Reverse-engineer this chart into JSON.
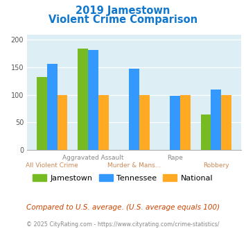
{
  "title_line1": "2019 Jamestown",
  "title_line2": "Violent Crime Comparison",
  "categories": [
    "All Violent Crime",
    "Aggravated Assault",
    "Murder & Mans...",
    "Rape",
    "Robbery"
  ],
  "jamestown": [
    133,
    184,
    0,
    0,
    64
  ],
  "tennessee": [
    156,
    182,
    147,
    98,
    110
  ],
  "national": [
    100,
    100,
    100,
    100,
    100
  ],
  "jamestown_color": "#77bb22",
  "tennessee_color": "#3399ff",
  "national_color": "#ffaa22",
  "ylim": [
    0,
    210
  ],
  "yticks": [
    0,
    50,
    100,
    150,
    200
  ],
  "background_color": "#ddeef5",
  "title_color": "#1177cc",
  "footnote": "Compared to U.S. average. (U.S. average equals 100)",
  "copyright": "© 2025 CityRating.com - https://www.cityrating.com/crime-statistics/",
  "legend_labels": [
    "Jamestown",
    "Tennessee",
    "National"
  ],
  "bar_width": 0.25,
  "x_top_labels": [
    [
      1,
      "Aggravated Assault"
    ],
    [
      3,
      "Rape"
    ]
  ],
  "x_bottom_labels": [
    [
      0,
      "All Violent Crime"
    ],
    [
      2,
      "Murder & Mans..."
    ],
    [
      4,
      "Robbery"
    ]
  ]
}
